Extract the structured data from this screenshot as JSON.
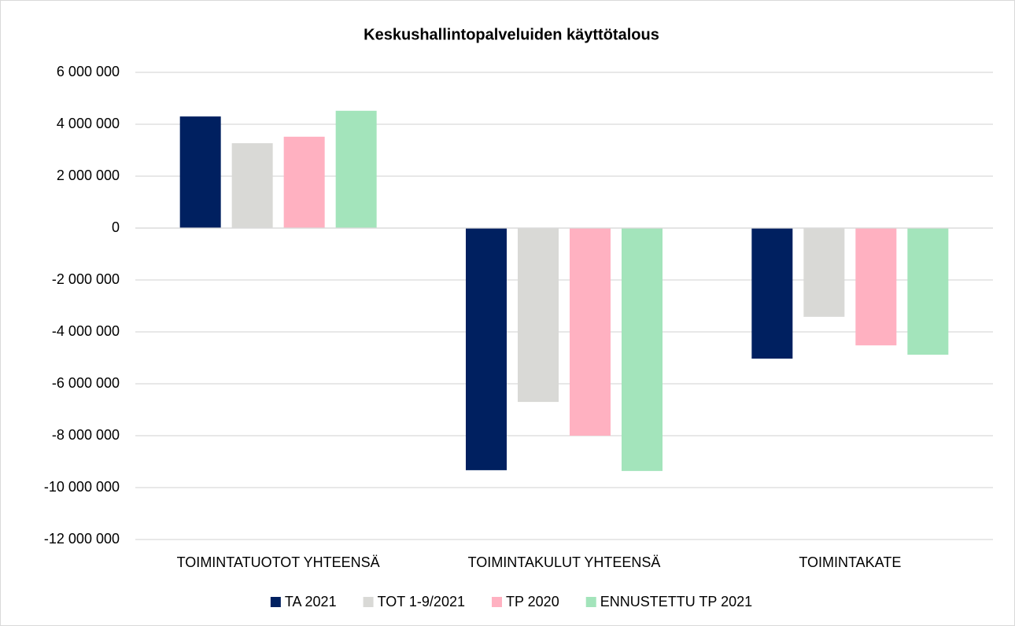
{
  "chart_data": {
    "type": "bar",
    "title": "Keskushallintopalveluiden käyttötalous",
    "categories": [
      "TOIMINTATUOTOT YHTEENSÄ",
      "TOIMINTAKULUT YHTEENSÄ",
      "TOIMINTAKATE"
    ],
    "series": [
      {
        "name": "TA 2021",
        "color": "#002060",
        "values": [
          4300000,
          -9330000,
          -5030000
        ]
      },
      {
        "name": "TOT 1-9/2021",
        "color": "#d9d9d6",
        "values": [
          3270000,
          -6700000,
          -3420000
        ]
      },
      {
        "name": "TP 2020",
        "color": "#ffb1c1",
        "values": [
          3520000,
          -8000000,
          -4520000
        ]
      },
      {
        "name": "ENNUSTETTU TP 2021",
        "color": "#a3e4bb",
        "values": [
          4520000,
          -9360000,
          -4880000
        ]
      }
    ],
    "ylim": [
      -12000000,
      6000000
    ],
    "yticks": [
      {
        "value": -12000000,
        "label": "-12 000 000"
      },
      {
        "value": -10000000,
        "label": "-10 000 000"
      },
      {
        "value": -8000000,
        "label": "-8 000 000"
      },
      {
        "value": -6000000,
        "label": "-6 000 000"
      },
      {
        "value": -4000000,
        "label": "-4 000 000"
      },
      {
        "value": -2000000,
        "label": "-2 000 000"
      },
      0,
      {
        "value": 2000000,
        "label": "2 000 000"
      },
      {
        "value": 4000000,
        "label": "4 000 000"
      },
      {
        "value": 6000000,
        "label": "6 000 000"
      }
    ],
    "grid": true,
    "legend": "bottom"
  }
}
